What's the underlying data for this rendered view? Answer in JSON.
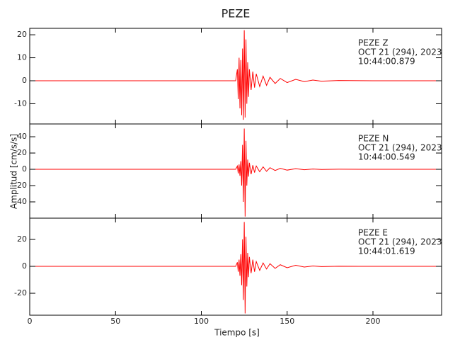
{
  "chart_data": {
    "type": "line",
    "title": "PEZE",
    "xlabel": "Tiempo [s]",
    "ylabel": "Amplitud [cm/s/s]",
    "xlim": [
      0,
      240
    ],
    "xticks": [
      0,
      50,
      100,
      150,
      200
    ],
    "panels": [
      {
        "annotation": [
          "PEZE   Z",
          "OCT 21 (294), 2023",
          "10:44:00.879"
        ],
        "color": "#ff0000",
        "ylim": [
          -18.8,
          22.8
        ],
        "yticks": [
          20,
          10,
          0,
          -10
        ],
        "x": [
          0,
          120,
          121,
          121.5,
          122,
          122.5,
          123,
          123.5,
          124,
          124.5,
          125,
          125.5,
          126,
          126.5,
          127,
          127.5,
          128,
          129,
          130,
          131,
          132,
          134,
          136,
          138,
          140,
          143,
          146,
          150,
          155,
          160,
          165,
          170,
          180,
          200,
          240
        ],
        "values": [
          0,
          0,
          5,
          -8,
          10,
          -12,
          9,
          -15,
          14,
          -17,
          22,
          -16,
          18,
          -10,
          8,
          -7,
          5,
          -4,
          4,
          -3,
          3,
          -2.5,
          2,
          -2,
          1.5,
          -1.2,
          1,
          -0.8,
          0.6,
          -0.4,
          0.3,
          -0.2,
          0.1,
          0,
          0
        ]
      },
      {
        "annotation": [
          "PEZE   N",
          "OCT 21 (294), 2023",
          "10:44:00.549"
        ],
        "color": "#ff0000",
        "ylim": [
          -60,
          55.7
        ],
        "yticks": [
          40,
          20,
          0,
          -20,
          -40
        ],
        "x": [
          0,
          120,
          121,
          121.5,
          122,
          122.5,
          123,
          123.5,
          124,
          124.5,
          125,
          125.5,
          126,
          126.5,
          127,
          127.5,
          128,
          129,
          130,
          131,
          132,
          134,
          136,
          138,
          140,
          143,
          146,
          150,
          155,
          160,
          165,
          170,
          180,
          200,
          240
        ],
        "values": [
          0,
          0,
          4,
          -5,
          6,
          -8,
          10,
          -20,
          30,
          -40,
          50,
          -58,
          35,
          -20,
          12,
          -9,
          8,
          -6,
          5,
          -4,
          4,
          -3,
          3,
          -2.5,
          2,
          -1.5,
          1.2,
          -1,
          0.8,
          -0.5,
          0.3,
          -0.2,
          0.1,
          0,
          0
        ]
      },
      {
        "annotation": [
          "PEZE   E",
          "OCT 21 (294), 2023",
          "10:44:01.619"
        ],
        "color": "#ff0000",
        "ylim": [
          -36.3,
          35.8
        ],
        "yticks": [
          20,
          0,
          -20
        ],
        "x": [
          0,
          120,
          121,
          121.5,
          122,
          122.5,
          123,
          123.5,
          124,
          124.5,
          125,
          125.5,
          126,
          126.5,
          127,
          127.5,
          128,
          129,
          130,
          131,
          132,
          134,
          136,
          138,
          140,
          143,
          146,
          150,
          155,
          160,
          165,
          170,
          180,
          200,
          240
        ],
        "values": [
          0,
          0,
          3,
          -4,
          5,
          -7,
          9,
          -14,
          20,
          -25,
          33,
          -35,
          22,
          -15,
          10,
          -8,
          7,
          -5,
          5,
          -4,
          3.5,
          -3,
          2.5,
          -2,
          2,
          -1.5,
          1.2,
          -1,
          0.8,
          -0.5,
          0.3,
          -0.2,
          0.1,
          0,
          0
        ]
      }
    ]
  }
}
